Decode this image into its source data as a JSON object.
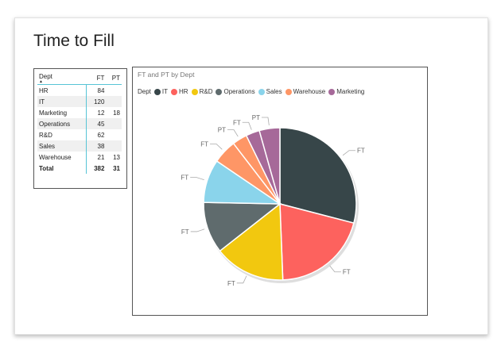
{
  "report": {
    "title": "Time to Fill"
  },
  "table": {
    "headers": [
      "Dept",
      "FT",
      "PT"
    ],
    "rows": [
      {
        "dept": "HR",
        "ft": "84",
        "pt": ""
      },
      {
        "dept": "IT",
        "ft": "120",
        "pt": ""
      },
      {
        "dept": "Marketing",
        "ft": "12",
        "pt": "18"
      },
      {
        "dept": "Operations",
        "ft": "45",
        "pt": ""
      },
      {
        "dept": "R&D",
        "ft": "62",
        "pt": ""
      },
      {
        "dept": "Sales",
        "ft": "38",
        "pt": ""
      },
      {
        "dept": "Warehouse",
        "ft": "21",
        "pt": "13"
      }
    ],
    "total": {
      "label": "Total",
      "ft": "382",
      "pt": "31"
    }
  },
  "chart_data": {
    "type": "pie",
    "title": "FT and PT by Dept",
    "legend_title": "Dept",
    "legend_position": "top-left",
    "legend": [
      {
        "name": "IT",
        "color": "#374649"
      },
      {
        "name": "HR",
        "color": "#fd625e"
      },
      {
        "name": "R&D",
        "color": "#f2c80f"
      },
      {
        "name": "Operations",
        "color": "#5f6b6d"
      },
      {
        "name": "Sales",
        "color": "#8ad4eb"
      },
      {
        "name": "Warehouse",
        "color": "#fe9666"
      },
      {
        "name": "Marketing",
        "color": "#a66999"
      }
    ],
    "slices": [
      {
        "dept": "IT",
        "type": "FT",
        "value": 120,
        "color": "#374649",
        "label": "FT"
      },
      {
        "dept": "HR",
        "type": "FT",
        "value": 84,
        "color": "#fd625e",
        "label": "FT"
      },
      {
        "dept": "R&D",
        "type": "FT",
        "value": 62,
        "color": "#f2c80f",
        "label": "FT"
      },
      {
        "dept": "Operations",
        "type": "FT",
        "value": 45,
        "color": "#5f6b6d",
        "label": "FT"
      },
      {
        "dept": "Sales",
        "type": "FT",
        "value": 38,
        "color": "#8ad4eb",
        "label": "FT"
      },
      {
        "dept": "Warehouse",
        "type": "FT",
        "value": 21,
        "color": "#fe9666",
        "label": "FT"
      },
      {
        "dept": "Warehouse",
        "type": "PT",
        "value": 13,
        "color": "#fe9666",
        "label": "PT"
      },
      {
        "dept": "Marketing",
        "type": "FT",
        "value": 12,
        "color": "#a66999",
        "label": "FT"
      },
      {
        "dept": "Marketing",
        "type": "PT",
        "value": 18,
        "color": "#a66999",
        "label": "PT"
      }
    ]
  }
}
